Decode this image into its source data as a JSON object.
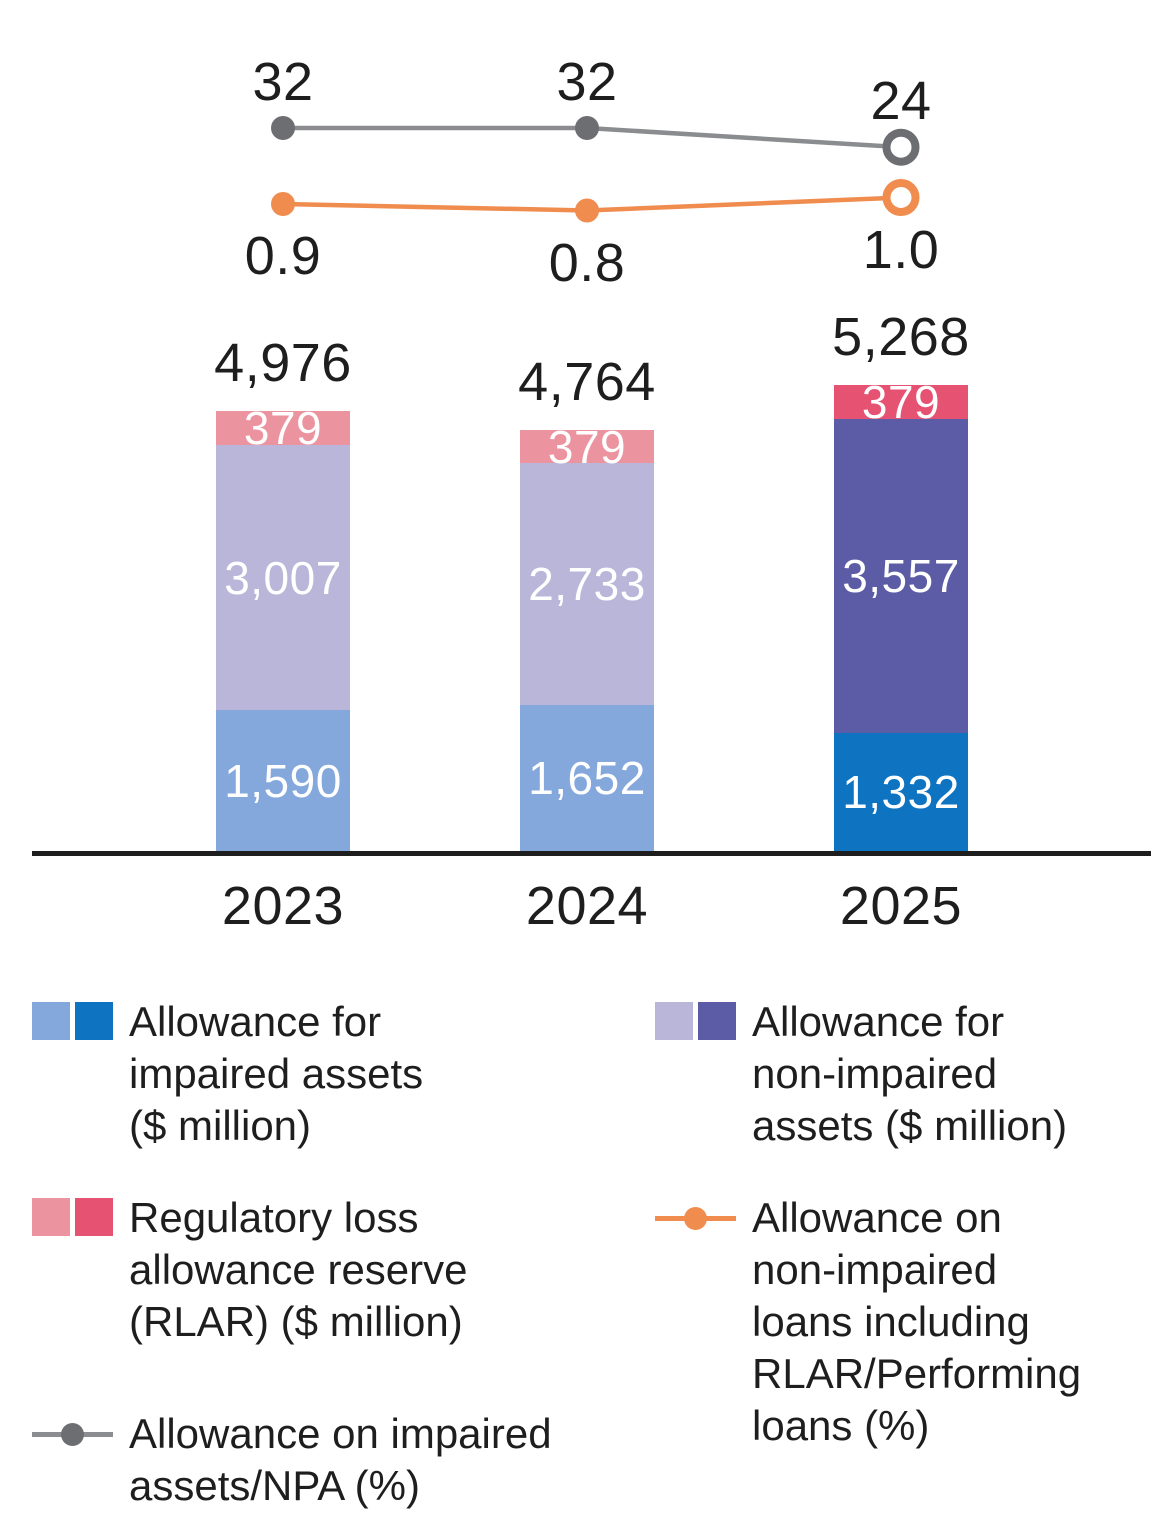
{
  "colors": {
    "impaired_light": "#85a8dc",
    "impaired_dark": "#0e73c0",
    "non_impaired_light": "#b9b6d9",
    "non_impaired_dark": "#5c5ca6",
    "rlar_light": "#ec93a0",
    "rlar_dark": "#e55272",
    "npa_line": "#8a8c8f",
    "npa_marker": "#6d6e71",
    "performing_line": "#ef8c4e",
    "performing_marker": "#ef8c4e",
    "axis": "#1e1e1e",
    "text": "#1e1e1e",
    "bar_value_text": "#ffffff",
    "background": "#ffffff"
  },
  "chart_data": {
    "type": "bar",
    "subtype": "stacked-bar-with-line-overlays",
    "categories": [
      "2023",
      "2024",
      "2025"
    ],
    "highlight_category": "2025",
    "grid": false,
    "y_axis_visible": false,
    "legend_position": "bottom",
    "bar_totals": {
      "values": [
        4976,
        4764,
        5268
      ],
      "labels": [
        "4,976",
        "4,764",
        "5,268"
      ]
    },
    "bar_series": [
      {
        "name": "Allowance for impaired assets ($ million)",
        "values": [
          1590,
          1652,
          1332
        ],
        "labels": [
          "1,590",
          "1,652",
          "1,332"
        ],
        "color_key_light": "impaired_light",
        "color_key_dark": "impaired_dark"
      },
      {
        "name": "Allowance for non-impaired assets ($ million)",
        "values": [
          3007,
          2733,
          3557
        ],
        "labels": [
          "3,007",
          "2,733",
          "3,557"
        ],
        "color_key_light": "non_impaired_light",
        "color_key_dark": "non_impaired_dark"
      },
      {
        "name": "Regulatory loss allowance reserve (RLAR) ($ million)",
        "values": [
          379,
          379,
          379
        ],
        "labels": [
          "379",
          "379",
          "379"
        ],
        "color_key_light": "rlar_light",
        "color_key_dark": "rlar_dark"
      }
    ],
    "line_series": [
      {
        "name": "Allowance on impaired assets/NPA (%)",
        "values": [
          32,
          32,
          24
        ],
        "labels": [
          "32",
          "32",
          "24"
        ],
        "label_position": "above",
        "line_color_key": "npa_line",
        "marker_color_key": "npa_marker",
        "open_marker_on_last": true
      },
      {
        "name": "Allowance on non-impaired loans including RLAR/Performing loans (%)",
        "values": [
          0.9,
          0.8,
          1.0
        ],
        "labels": [
          "0.9",
          "0.8",
          "1.0"
        ],
        "label_position": "below",
        "line_color_key": "performing_line",
        "marker_color_key": "performing_marker",
        "open_marker_on_last": true
      }
    ]
  },
  "legend": {
    "items": [
      {
        "id": "impaired",
        "type": "swatch-pair",
        "label": "Allowance for\nimpaired assets\n($ million)"
      },
      {
        "id": "non_impaired",
        "type": "swatch-pair",
        "label": "Allowance for\nnon-impaired\nassets ($ million)"
      },
      {
        "id": "rlar",
        "type": "swatch-pair",
        "label": "Regulatory loss\nallowance reserve\n(RLAR) ($ million)"
      },
      {
        "id": "performing",
        "type": "line-marker",
        "label": "Allowance on\nnon-impaired\nloans including\nRLAR/Performing\nloans (%)"
      },
      {
        "id": "npa",
        "type": "line-marker",
        "label": "Allowance on impaired\nassets/NPA (%)"
      }
    ]
  }
}
